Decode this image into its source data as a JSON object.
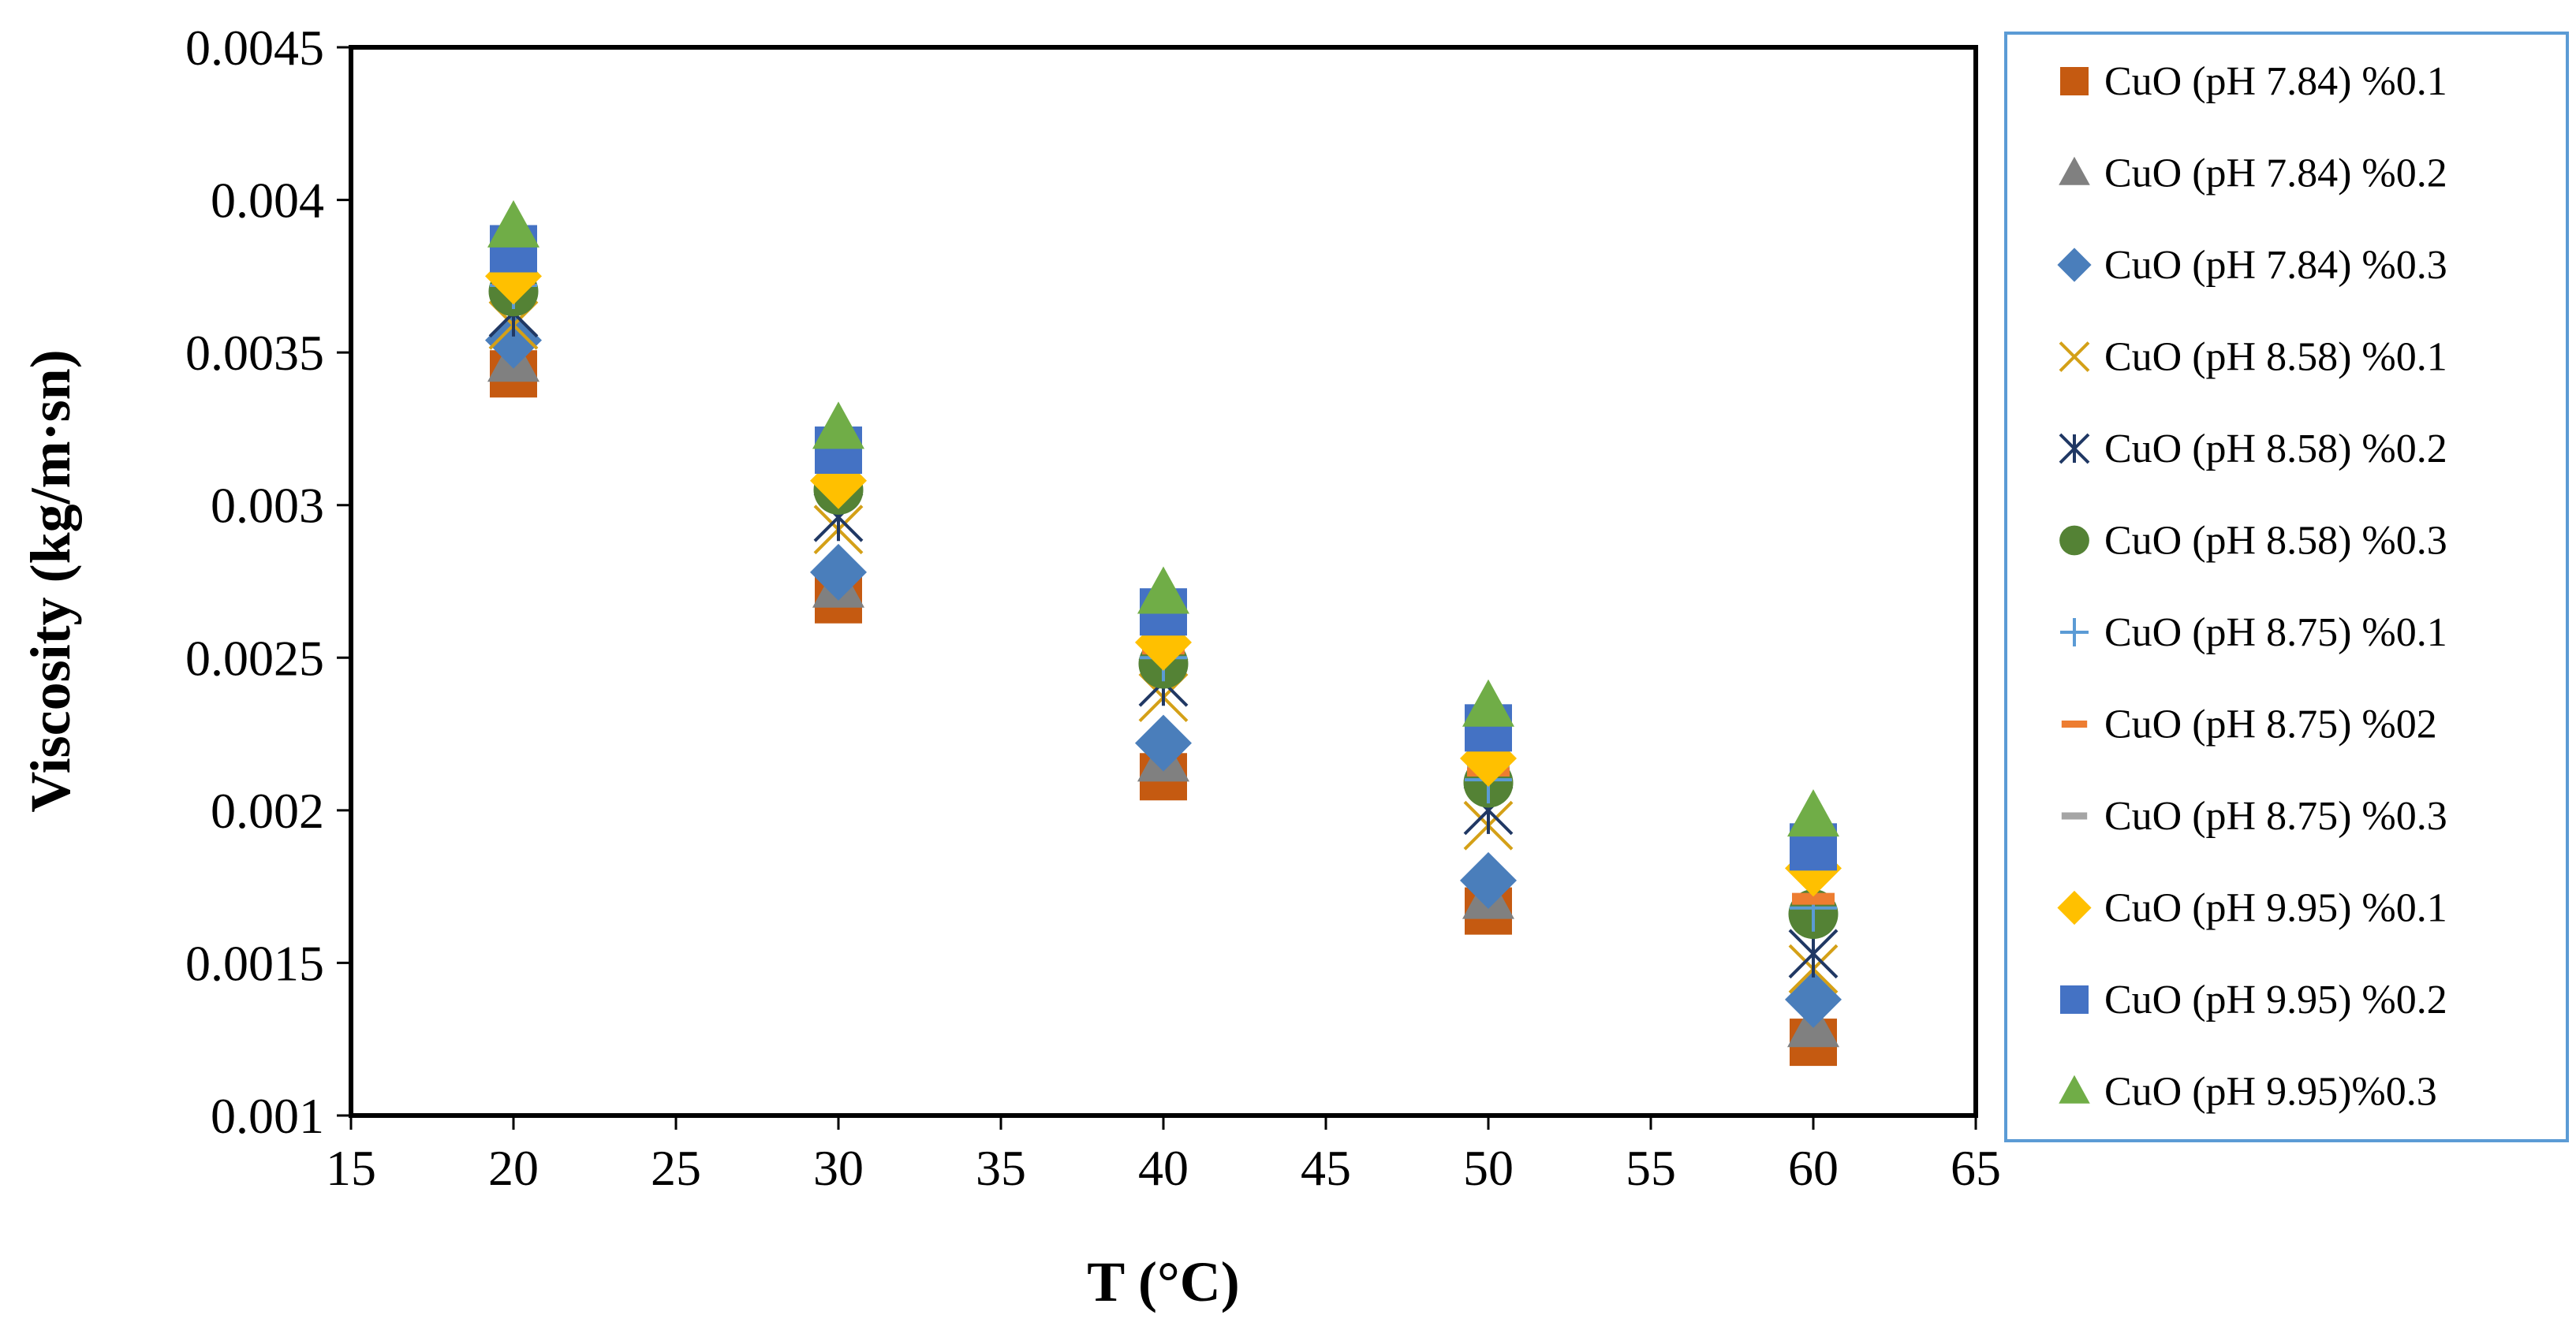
{
  "chart_data": {
    "type": "scatter",
    "xlabel": "T (°C)",
    "ylabel": "Viscosity (kg/m·sn)",
    "xlim": [
      15,
      65
    ],
    "ylim": [
      0.001,
      0.0045
    ],
    "xticks": [
      15,
      20,
      25,
      30,
      35,
      40,
      45,
      50,
      55,
      60,
      65
    ],
    "yticks": [
      0.001,
      0.0015,
      0.002,
      0.0025,
      0.003,
      0.0035,
      0.004,
      0.0045
    ],
    "ytick_labels": [
      "0.001",
      "0.0015",
      "0.002",
      "0.0025",
      "0.003",
      "0.0035",
      "0.004",
      "0.0045"
    ],
    "grid": false,
    "legend_position": "right",
    "x": [
      20,
      30,
      40,
      50,
      60
    ],
    "series": [
      {
        "name": "CuO (pH 7.84) %0.1",
        "marker": "square",
        "color": "#C55A11",
        "values": [
          0.00343,
          0.00269,
          0.00211,
          0.00167,
          0.00124
        ]
      },
      {
        "name": "CuO (pH 7.84) %0.2",
        "marker": "triangle",
        "color": "#808080",
        "values": [
          0.00347,
          0.00273,
          0.00216,
          0.00171,
          0.00129
        ]
      },
      {
        "name": "CuO (pH 7.84) %0.3",
        "marker": "diamond",
        "color": "#4A7EBB",
        "values": [
          0.00354,
          0.00278,
          0.00222,
          0.00177,
          0.00138
        ]
      },
      {
        "name": "CuO (pH 8.58) %0.1",
        "marker": "x",
        "color": "#D4A017",
        "values": [
          0.00359,
          0.00292,
          0.00237,
          0.00195,
          0.00148
        ]
      },
      {
        "name": "CuO (pH 8.58) %0.2",
        "marker": "star",
        "color": "#203864",
        "values": [
          0.00363,
          0.00296,
          0.00242,
          0.002,
          0.00153
        ]
      },
      {
        "name": "CuO (pH 8.58) %0.3",
        "marker": "circle",
        "color": "#548235",
        "values": [
          0.0037,
          0.00305,
          0.00248,
          0.00209,
          0.00166
        ]
      },
      {
        "name": "CuO (pH 8.75) %0.1",
        "marker": "plus",
        "color": "#5B9BD5",
        "values": [
          0.00372,
          0.00307,
          0.0025,
          0.0021,
          0.00168
        ]
      },
      {
        "name": "CuO (pH 8.75) %02",
        "marker": "dash",
        "color": "#ED7D31",
        "values": [
          0.00374,
          0.0031,
          0.00253,
          0.00213,
          0.00171
        ]
      },
      {
        "name": "CuO (pH 8.75) %0.3",
        "marker": "dash",
        "color": "#A5A5A5",
        "values": [
          0.00376,
          0.00312,
          0.00256,
          0.00216,
          0.00181
        ]
      },
      {
        "name": "CuO (pH 9.95) %0.1",
        "marker": "diamond",
        "color": "#FFC000",
        "values": [
          0.00375,
          0.00308,
          0.00255,
          0.00217,
          0.00181
        ]
      },
      {
        "name": "CuO (pH 9.95) %0.2",
        "marker": "square",
        "color": "#4472C4",
        "values": [
          0.00384,
          0.00318,
          0.00265,
          0.00227,
          0.00188
        ]
      },
      {
        "name": "CuO (pH 9.95)%0.3",
        "marker": "triangle",
        "color": "#70AD47",
        "values": [
          0.00391,
          0.00325,
          0.00271,
          0.00234,
          0.00198
        ]
      }
    ]
  }
}
